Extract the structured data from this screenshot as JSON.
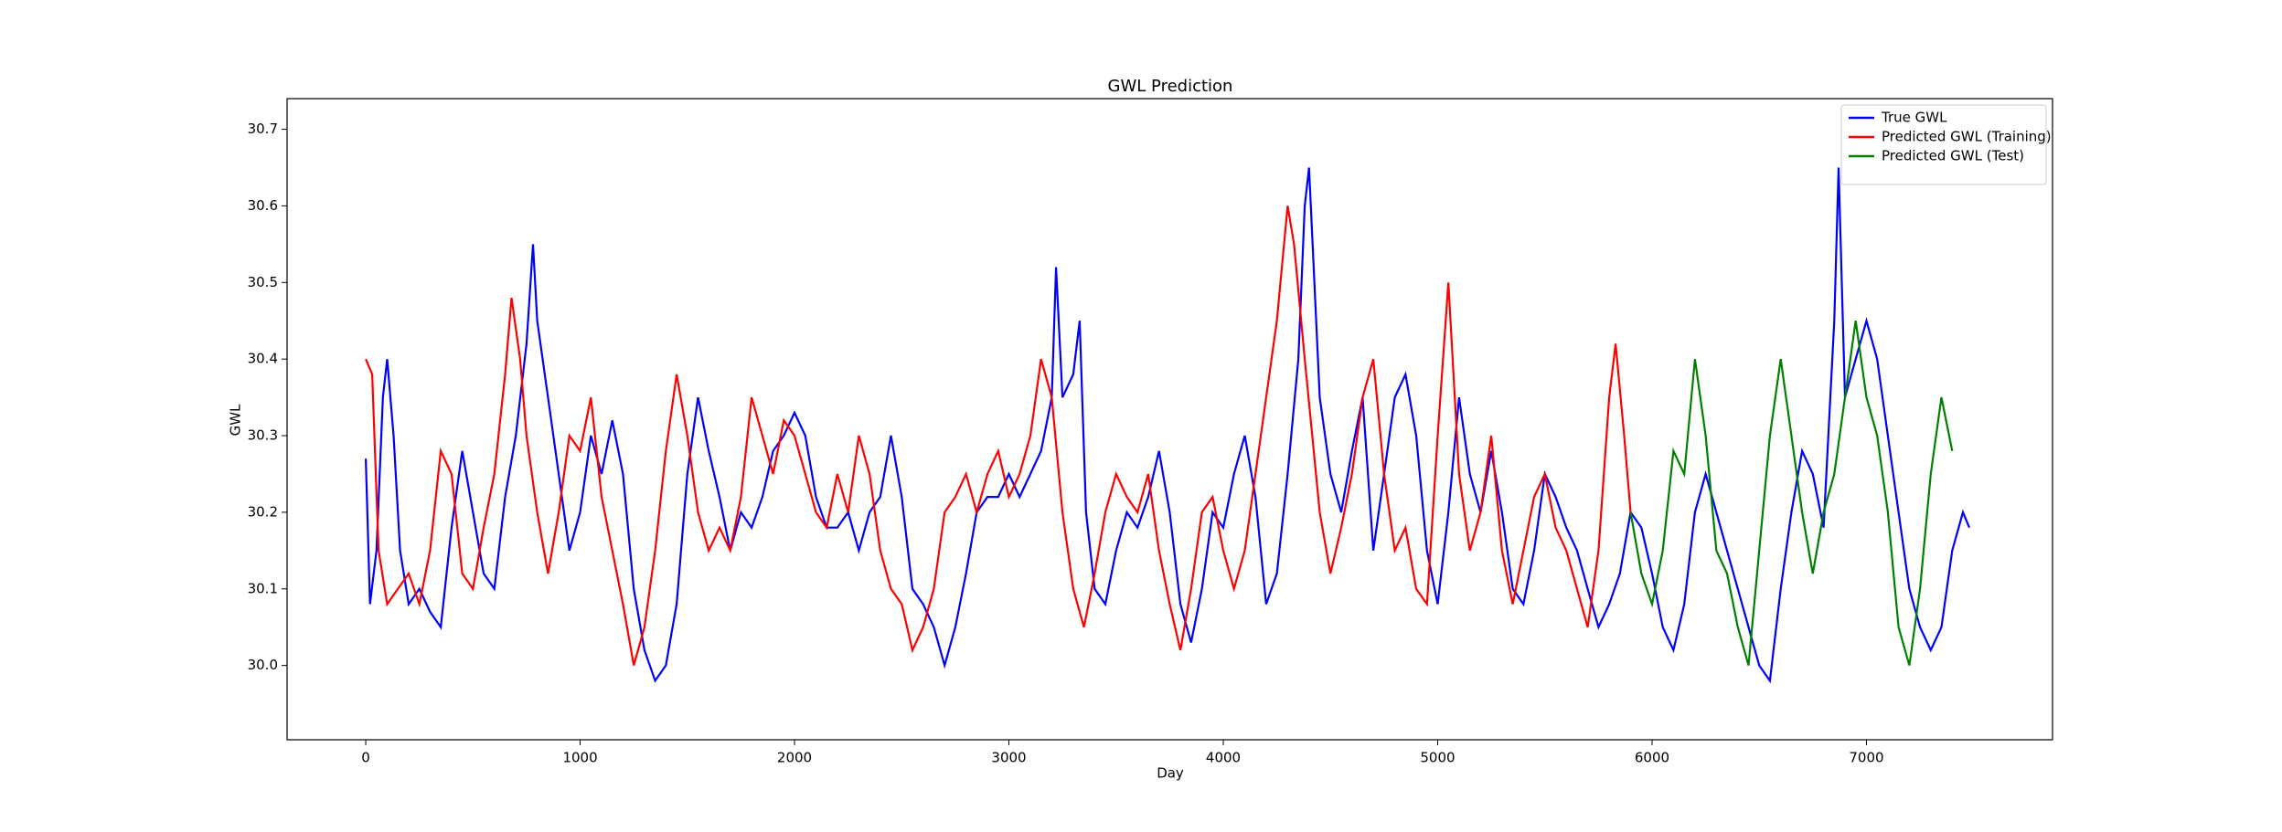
{
  "chart_data": {
    "type": "line",
    "title": "GWL Prediction",
    "x_label": "Day",
    "y_label": "GWL",
    "xlim": [
      -367,
      7868
    ],
    "ylim": [
      29.903,
      30.74
    ],
    "xticks": [
      0,
      1000,
      2000,
      3000,
      4000,
      5000,
      6000,
      7000
    ],
    "yticks": [
      {
        "value": 30,
        "label": "30.0"
      },
      30.1,
      30.2,
      30.3,
      30.4,
      30.5,
      30.6,
      30.7
    ],
    "legend": "upper right",
    "series": [
      {
        "name": "True GWL",
        "color": "#0000ff",
        "x": [
          0,
          20,
          50,
          80,
          100,
          130,
          160,
          200,
          250,
          300,
          350,
          400,
          450,
          500,
          550,
          600,
          650,
          700,
          750,
          780,
          800,
          850,
          900,
          950,
          1000,
          1050,
          1100,
          1150,
          1200,
          1250,
          1300,
          1350,
          1400,
          1450,
          1500,
          1550,
          1600,
          1650,
          1700,
          1750,
          1800,
          1850,
          1900,
          1950,
          2000,
          2050,
          2100,
          2150,
          2200,
          2250,
          2300,
          2350,
          2400,
          2450,
          2500,
          2550,
          2600,
          2650,
          2700,
          2750,
          2800,
          2850,
          2900,
          2950,
          3000,
          3050,
          3100,
          3150,
          3200,
          3220,
          3250,
          3300,
          3330,
          3360,
          3400,
          3450,
          3500,
          3550,
          3600,
          3650,
          3700,
          3750,
          3800,
          3850,
          3900,
          3950,
          4000,
          4050,
          4100,
          4150,
          4200,
          4250,
          4300,
          4350,
          4380,
          4400,
          4450,
          4500,
          4550,
          4600,
          4650,
          4700,
          4750,
          4800,
          4850,
          4900,
          4950,
          5000,
          5050,
          5100,
          5150,
          5200,
          5250,
          5300,
          5350,
          5400,
          5450,
          5500,
          5550,
          5600,
          5650,
          5700,
          5750,
          5800,
          5850,
          5900,
          5950,
          6000,
          6050,
          6100,
          6150,
          6200,
          6250,
          6300,
          6350,
          6400,
          6450,
          6500,
          6550,
          6600,
          6650,
          6700,
          6750,
          6800,
          6850,
          6870,
          6900,
          6950,
          7000,
          7050,
          7100,
          7150,
          7200,
          7250,
          7300,
          7350,
          7400,
          7450,
          7480
        ],
        "values": [
          30.27,
          30.08,
          30.15,
          30.35,
          30.4,
          30.3,
          30.15,
          30.08,
          30.1,
          30.07,
          30.05,
          30.18,
          30.28,
          30.2,
          30.12,
          30.1,
          30.22,
          30.3,
          30.42,
          30.55,
          30.45,
          30.35,
          30.25,
          30.15,
          30.2,
          30.3,
          30.25,
          30.32,
          30.25,
          30.1,
          30.02,
          29.98,
          30.0,
          30.08,
          30.25,
          30.35,
          30.28,
          30.22,
          30.15,
          30.2,
          30.18,
          30.22,
          30.28,
          30.3,
          30.33,
          30.3,
          30.22,
          30.18,
          30.18,
          30.2,
          30.15,
          30.2,
          30.22,
          30.3,
          30.22,
          30.1,
          30.08,
          30.05,
          30.0,
          30.05,
          30.12,
          30.2,
          30.22,
          30.22,
          30.25,
          30.22,
          30.25,
          30.28,
          30.35,
          30.52,
          30.35,
          30.38,
          30.45,
          30.2,
          30.1,
          30.08,
          30.15,
          30.2,
          30.18,
          30.22,
          30.28,
          30.2,
          30.08,
          30.03,
          30.1,
          30.2,
          30.18,
          30.25,
          30.3,
          30.22,
          30.08,
          30.12,
          30.25,
          30.4,
          30.6,
          30.65,
          30.35,
          30.25,
          30.2,
          30.28,
          30.35,
          30.15,
          30.25,
          30.35,
          30.38,
          30.3,
          30.15,
          30.08,
          30.2,
          30.35,
          30.25,
          30.2,
          30.28,
          30.2,
          30.1,
          30.08,
          30.15,
          30.25,
          30.22,
          30.18,
          30.15,
          30.1,
          30.05,
          30.08,
          30.12,
          30.2,
          30.18,
          30.12,
          30.05,
          30.02,
          30.08,
          30.2,
          30.25,
          30.2,
          30.15,
          30.1,
          30.05,
          30.0,
          29.98,
          30.1,
          30.2,
          30.28,
          30.25,
          30.18,
          30.45,
          30.65,
          30.35,
          30.4,
          30.45,
          30.4,
          30.3,
          30.2,
          30.1,
          30.05,
          30.02,
          30.05,
          30.15,
          30.2,
          30.18
        ]
      },
      {
        "name": "Predicted GWL (Training)",
        "color": "#ff0000",
        "x": [
          0,
          30,
          60,
          100,
          150,
          200,
          250,
          300,
          350,
          400,
          450,
          500,
          550,
          600,
          650,
          680,
          720,
          750,
          800,
          850,
          900,
          950,
          1000,
          1050,
          1100,
          1150,
          1200,
          1250,
          1300,
          1350,
          1400,
          1450,
          1500,
          1550,
          1600,
          1650,
          1700,
          1750,
          1800,
          1850,
          1900,
          1950,
          2000,
          2050,
          2100,
          2150,
          2200,
          2250,
          2300,
          2350,
          2400,
          2450,
          2500,
          2550,
          2600,
          2650,
          2700,
          2750,
          2800,
          2850,
          2900,
          2950,
          3000,
          3050,
          3100,
          3150,
          3200,
          3250,
          3300,
          3350,
          3400,
          3450,
          3500,
          3550,
          3600,
          3650,
          3700,
          3750,
          3800,
          3850,
          3900,
          3950,
          4000,
          4050,
          4100,
          4150,
          4200,
          4250,
          4300,
          4330,
          4380,
          4450,
          4500,
          4550,
          4600,
          4650,
          4700,
          4750,
          4800,
          4850,
          4900,
          4950,
          5000,
          5050,
          5100,
          5150,
          5200,
          5250,
          5300,
          5350,
          5400,
          5450,
          5500,
          5550,
          5600,
          5650,
          5700,
          5750,
          5800,
          5830,
          5870,
          5900
        ],
        "values": [
          30.4,
          30.38,
          30.15,
          30.08,
          30.1,
          30.12,
          30.08,
          30.15,
          30.28,
          30.25,
          30.12,
          30.1,
          30.18,
          30.25,
          30.38,
          30.48,
          30.4,
          30.3,
          30.2,
          30.12,
          30.2,
          30.3,
          30.28,
          30.35,
          30.22,
          30.15,
          30.08,
          30.0,
          30.05,
          30.15,
          30.28,
          30.38,
          30.3,
          30.2,
          30.15,
          30.18,
          30.15,
          30.22,
          30.35,
          30.3,
          30.25,
          30.32,
          30.3,
          30.25,
          30.2,
          30.18,
          30.25,
          30.2,
          30.3,
          30.25,
          30.15,
          30.1,
          30.08,
          30.02,
          30.05,
          30.1,
          30.2,
          30.22,
          30.25,
          30.2,
          30.25,
          30.28,
          30.22,
          30.25,
          30.3,
          30.4,
          30.35,
          30.2,
          30.1,
          30.05,
          30.12,
          30.2,
          30.25,
          30.22,
          30.2,
          30.25,
          30.15,
          30.08,
          30.02,
          30.1,
          30.2,
          30.22,
          30.15,
          30.1,
          30.15,
          30.25,
          30.35,
          30.45,
          30.6,
          30.55,
          30.4,
          30.2,
          30.12,
          30.18,
          30.25,
          30.35,
          30.4,
          30.25,
          30.15,
          30.18,
          30.1,
          30.08,
          30.3,
          30.5,
          30.25,
          30.15,
          30.2,
          30.3,
          30.15,
          30.08,
          30.15,
          30.22,
          30.25,
          30.18,
          30.15,
          30.1,
          30.05,
          30.15,
          30.35,
          30.42,
          30.3,
          30.2
        ]
      },
      {
        "name": "Predicted GWL (Test)",
        "color": "#008000",
        "x": [
          5900,
          5950,
          6000,
          6050,
          6100,
          6150,
          6200,
          6250,
          6300,
          6350,
          6400,
          6450,
          6500,
          6550,
          6600,
          6650,
          6700,
          6750,
          6800,
          6850,
          6900,
          6950,
          7000,
          7050,
          7100,
          7150,
          7200,
          7250,
          7300,
          7350,
          7400
        ],
        "values": [
          30.2,
          30.12,
          30.08,
          30.15,
          30.28,
          30.25,
          30.4,
          30.3,
          30.15,
          30.12,
          30.05,
          30.0,
          30.15,
          30.3,
          30.4,
          30.3,
          30.2,
          30.12,
          30.2,
          30.25,
          30.35,
          30.45,
          30.35,
          30.3,
          30.2,
          30.05,
          30.0,
          30.1,
          30.25,
          30.35,
          30.28
        ]
      }
    ]
  }
}
